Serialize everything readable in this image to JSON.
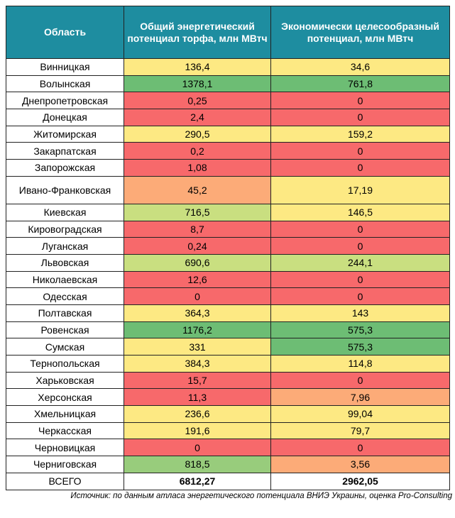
{
  "headers": {
    "region": "Область",
    "total_potential": "Общий энергетический потенциал торфа, млн МВтч",
    "economic_potential": "Экономически целесообразный потенциал, млн МВтч"
  },
  "rows": [
    {
      "region": "Винницкая",
      "total": "136,4",
      "econ": "34,6"
    },
    {
      "region": "Волынская",
      "total": "1378,1",
      "econ": "761,8"
    },
    {
      "region": "Днепропетровская",
      "total": "0,25",
      "econ": "0"
    },
    {
      "region": "Донецкая",
      "total": "2,4",
      "econ": "0"
    },
    {
      "region": "Житомирская",
      "total": "290,5",
      "econ": "159,2"
    },
    {
      "region": "Закарпатская",
      "total": "0,2",
      "econ": "0"
    },
    {
      "region": "Запорожская",
      "total": "1,08",
      "econ": "0"
    },
    {
      "region": "Ивано-Франковская",
      "total": "45,2",
      "econ": "17,19"
    },
    {
      "region": "Киевская",
      "total": "716,5",
      "econ": "146,5"
    },
    {
      "region": "Кировоградская",
      "total": "8,7",
      "econ": "0"
    },
    {
      "region": "Луганская",
      "total": "0,24",
      "econ": "0"
    },
    {
      "region": "Львовская",
      "total": "690,6",
      "econ": "244,1"
    },
    {
      "region": "Николаевская",
      "total": "12,6",
      "econ": "0"
    },
    {
      "region": "Одесская",
      "total": "0",
      "econ": "0"
    },
    {
      "region": "Полтавская",
      "total": "364,3",
      "econ": "143"
    },
    {
      "region": "Ровенская",
      "total": "1176,2",
      "econ": "575,3"
    },
    {
      "region": "Сумская",
      "total": "331",
      "econ": "575,3"
    },
    {
      "region": "Тернопольская",
      "total": "384,3",
      "econ": "114,8"
    },
    {
      "region": "Харьковская",
      "total": "15,7",
      "econ": "0"
    },
    {
      "region": "Херсонская",
      "total": "11,3",
      "econ": "7,96"
    },
    {
      "region": "Хмельницкая",
      "total": "236,6",
      "econ": "99,04"
    },
    {
      "region": "Черкасская",
      "total": "191,6",
      "econ": "79,7"
    },
    {
      "region": "Черновицкая",
      "total": "0",
      "econ": "0"
    },
    {
      "region": "Черниговская",
      "total": "818,5",
      "econ": "3,56"
    }
  ],
  "total_row": {
    "region": "ВСЕГО",
    "total": "6812,27",
    "econ": "2962,05"
  },
  "source": "Источник: по данным атласа энергетического потенциала ВНИЭ Украины, оценка Pro-Consulting",
  "colors": {
    "header_bg": "#1e8da0",
    "red": "#f7696b",
    "orange": "#fcab78",
    "yellow": "#fde983",
    "light_green": "#c9df80",
    "green": "#98cc7c",
    "dark_green": "#6dbd74"
  }
}
